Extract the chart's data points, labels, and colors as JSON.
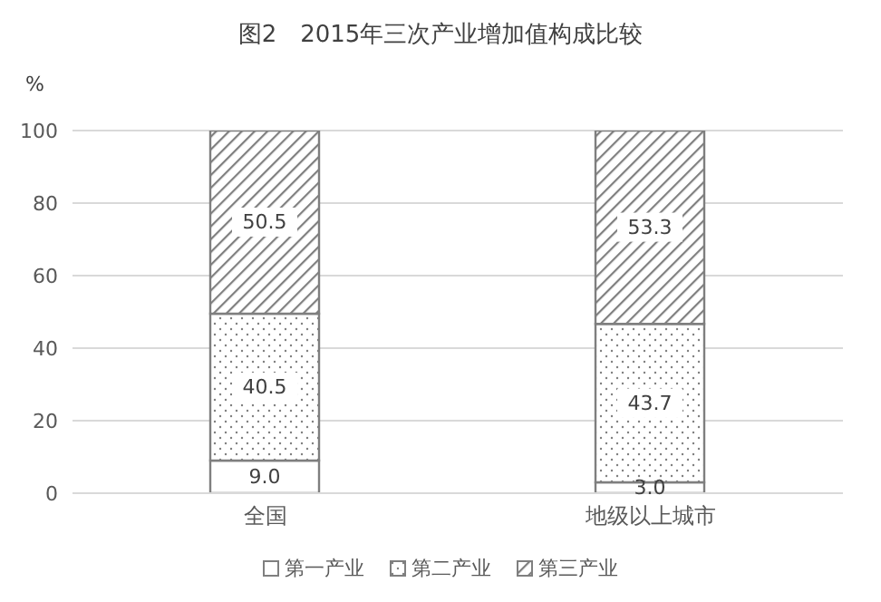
{
  "chart_data": {
    "type": "bar",
    "title": "图2　2015年三次产业增加值构成比较",
    "ylabel": "%",
    "categories": [
      "全国",
      "地级以上城市"
    ],
    "stacked": true,
    "series": [
      {
        "name": "第一产业",
        "color": "#ffffff",
        "values": [
          9.0,
          3.0
        ],
        "value_labels": [
          "9.0",
          "3.0"
        ]
      },
      {
        "name": "第二产业",
        "color": "#7f7f7f",
        "values": [
          40.5,
          43.7
        ],
        "value_labels": [
          "40.5",
          "43.7"
        ]
      },
      {
        "name": "第三产业",
        "color": "#7f7f7f",
        "values": [
          50.5,
          53.3
        ],
        "value_labels": [
          "50.5",
          "53.3"
        ]
      }
    ],
    "ylim": [
      0,
      100
    ],
    "yticks": [
      0,
      20,
      40,
      60,
      80,
      100
    ],
    "grid": "y",
    "legend": "bottom"
  }
}
